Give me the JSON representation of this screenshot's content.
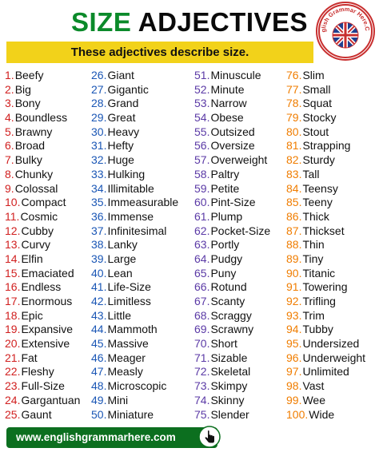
{
  "title": {
    "word1": "SIZE",
    "word2": "ADJECTIVES"
  },
  "subtitle": "These adjectives describe size.",
  "logo": {
    "text": "English Grammar Here.Com"
  },
  "footer": {
    "url": "www.englishgrammarhere.com"
  },
  "colors": {
    "title_green": "#0b8a2a",
    "banner_yellow": "#f2d21a",
    "footer_green": "#0c6f1f"
  },
  "columns": [
    [
      {
        "n": "1.",
        "w": "Beefy"
      },
      {
        "n": "2.",
        "w": "Big"
      },
      {
        "n": "3.",
        "w": "Bony"
      },
      {
        "n": "4.",
        "w": "Boundless"
      },
      {
        "n": "5.",
        "w": "Brawny"
      },
      {
        "n": "6.",
        "w": "Broad"
      },
      {
        "n": "7.",
        "w": "Bulky"
      },
      {
        "n": "8.",
        "w": "Chunky"
      },
      {
        "n": "9.",
        "w": "Colossal"
      },
      {
        "n": "10.",
        "w": "Compact"
      },
      {
        "n": "11.",
        "w": "Cosmic"
      },
      {
        "n": "12.",
        "w": "Cubby"
      },
      {
        "n": "13.",
        "w": "Curvy"
      },
      {
        "n": "14.",
        "w": "Elfin"
      },
      {
        "n": "15.",
        "w": "Emaciated"
      },
      {
        "n": "16.",
        "w": "Endless"
      },
      {
        "n": "17.",
        "w": "Enormous"
      },
      {
        "n": "18.",
        "w": "Epic"
      },
      {
        "n": "19.",
        "w": "Expansive"
      },
      {
        "n": "20.",
        "w": "Extensive"
      },
      {
        "n": "21.",
        "w": "Fat"
      },
      {
        "n": "22.",
        "w": "Fleshy"
      },
      {
        "n": "23.",
        "w": "Full-Size"
      },
      {
        "n": "24.",
        "w": "Gargantuan"
      },
      {
        "n": "25.",
        "w": "Gaunt"
      }
    ],
    [
      {
        "n": "26.",
        "w": "Giant"
      },
      {
        "n": "27.",
        "w": "Gigantic"
      },
      {
        "n": "28.",
        "w": "Grand"
      },
      {
        "n": "29.",
        "w": "Great"
      },
      {
        "n": "30.",
        "w": "Heavy"
      },
      {
        "n": "31.",
        "w": "Hefty"
      },
      {
        "n": "32.",
        "w": "Huge"
      },
      {
        "n": "33.",
        "w": "Hulking"
      },
      {
        "n": "34.",
        "w": "Illimitable"
      },
      {
        "n": "35.",
        "w": "Immeasurable"
      },
      {
        "n": "36.",
        "w": "Immense"
      },
      {
        "n": "37.",
        "w": "Infinitesimal"
      },
      {
        "n": "38.",
        "w": "Lanky"
      },
      {
        "n": "39.",
        "w": "Large"
      },
      {
        "n": "40.",
        "w": "Lean"
      },
      {
        "n": "41.",
        "w": "Life-Size"
      },
      {
        "n": "42.",
        "w": "Limitless"
      },
      {
        "n": "43.",
        "w": "Little"
      },
      {
        "n": "44.",
        "w": "Mammoth"
      },
      {
        "n": "45.",
        "w": "Massive"
      },
      {
        "n": "46.",
        "w": "Meager"
      },
      {
        "n": "47.",
        "w": "Measly"
      },
      {
        "n": "48.",
        "w": "Microscopic"
      },
      {
        "n": "49.",
        "w": "Mini"
      },
      {
        "n": "50.",
        "w": "Miniature"
      }
    ],
    [
      {
        "n": "51.",
        "w": "Minuscule"
      },
      {
        "n": "52.",
        "w": "Minute"
      },
      {
        "n": "53.",
        "w": "Narrow"
      },
      {
        "n": "54.",
        "w": "Obese"
      },
      {
        "n": "55.",
        "w": "Outsized"
      },
      {
        "n": "56.",
        "w": "Oversize"
      },
      {
        "n": "57.",
        "w": "Overweight"
      },
      {
        "n": "58.",
        "w": "Paltry"
      },
      {
        "n": "59.",
        "w": "Petite"
      },
      {
        "n": "60.",
        "w": "Pint-Size"
      },
      {
        "n": "61.",
        "w": "Plump"
      },
      {
        "n": "62.",
        "w": "Pocket-Size"
      },
      {
        "n": "63.",
        "w": "Portly"
      },
      {
        "n": "64.",
        "w": "Pudgy"
      },
      {
        "n": "65.",
        "w": "Puny"
      },
      {
        "n": "66.",
        "w": "Rotund"
      },
      {
        "n": "67.",
        "w": "Scanty"
      },
      {
        "n": "68.",
        "w": "Scraggy"
      },
      {
        "n": "69.",
        "w": "Scrawny"
      },
      {
        "n": "70.",
        "w": "Short"
      },
      {
        "n": "71.",
        "w": "Sizable"
      },
      {
        "n": "72.",
        "w": "Skeletal"
      },
      {
        "n": "73.",
        "w": "Skimpy"
      },
      {
        "n": "74.",
        "w": "Skinny"
      },
      {
        "n": "75.",
        "w": "Slender"
      }
    ],
    [
      {
        "n": "76.",
        "w": "Slim"
      },
      {
        "n": "77.",
        "w": "Small"
      },
      {
        "n": "78.",
        "w": "Squat"
      },
      {
        "n": "79.",
        "w": "Stocky"
      },
      {
        "n": "80.",
        "w": "Stout"
      },
      {
        "n": "81.",
        "w": "Strapping"
      },
      {
        "n": "82.",
        "w": "Sturdy"
      },
      {
        "n": "83.",
        "w": "Tall"
      },
      {
        "n": "84.",
        "w": "Teensy"
      },
      {
        "n": "85.",
        "w": "Teeny"
      },
      {
        "n": "86.",
        "w": "Thick"
      },
      {
        "n": "87.",
        "w": "Thickset"
      },
      {
        "n": "88.",
        "w": "Thin"
      },
      {
        "n": "89.",
        "w": "Tiny"
      },
      {
        "n": "90.",
        "w": "Titanic"
      },
      {
        "n": "91.",
        "w": "Towering"
      },
      {
        "n": "92.",
        "w": "Trifling"
      },
      {
        "n": "93.",
        "w": "Trim"
      },
      {
        "n": "94.",
        "w": "Tubby"
      },
      {
        "n": "95.",
        "w": "Undersized"
      },
      {
        "n": "96.",
        "w": "Underweight"
      },
      {
        "n": "97.",
        "w": "Unlimited"
      },
      {
        "n": "98.",
        "w": "Vast"
      },
      {
        "n": "99.",
        "w": "Wee"
      },
      {
        "n": "100.",
        "w": "Wide"
      }
    ]
  ]
}
